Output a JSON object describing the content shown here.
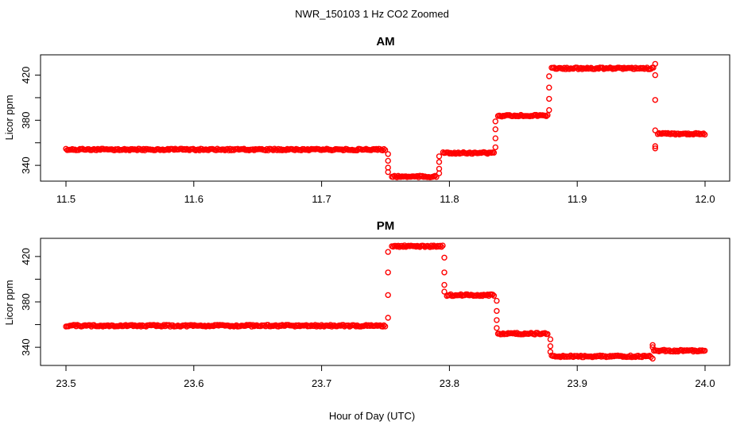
{
  "title": "NWR_150103  1 Hz CO2 Zoomed",
  "xlabel": "Hour of Day (UTC)",
  "chart_data": [
    {
      "type": "scatter",
      "title": "AM",
      "xlabel": "Hour of Day (UTC)",
      "ylabel": "Licor ppm",
      "xlim": [
        11.5,
        12.0
      ],
      "ylim": [
        326,
        438
      ],
      "xticks": [
        "11.5",
        "11.6",
        "11.7",
        "11.8",
        "11.9",
        "12.0"
      ],
      "xtick_values": [
        11.5,
        11.6,
        11.7,
        11.8,
        11.9,
        12.0
      ],
      "yticks": [
        "340",
        "380",
        "420"
      ],
      "ytick_values": [
        340,
        380,
        420
      ],
      "marker_color": "#ff0000",
      "marker": "open-circle",
      "segments": [
        {
          "x_start": 11.5,
          "x_end": 11.75,
          "y": 354
        },
        {
          "x_start": 11.755,
          "x_end": 11.79,
          "y": 330
        },
        {
          "x_start": 11.795,
          "x_end": 11.835,
          "y": 351
        },
        {
          "x_start": 11.838,
          "x_end": 11.877,
          "y": 384
        },
        {
          "x_start": 11.88,
          "x_end": 11.96,
          "y": 426
        },
        {
          "x_start": 11.963,
          "x_end": 12.0,
          "y": 368
        }
      ],
      "transitions": [
        {
          "x": 11.752,
          "y": [
            350,
            344,
            338,
            334
          ]
        },
        {
          "x": 11.792,
          "y": [
            333,
            337,
            343,
            348
          ]
        },
        {
          "x": 11.836,
          "y": [
            356,
            364,
            372,
            379
          ]
        },
        {
          "x": 11.878,
          "y": [
            389,
            399,
            409,
            419
          ]
        },
        {
          "x": 11.961,
          "y": [
            430,
            420,
            398,
            371,
            357,
            355
          ]
        }
      ]
    },
    {
      "type": "scatter",
      "title": "PM",
      "xlabel": "Hour of Day (UTC)",
      "ylabel": "Licor ppm",
      "xlim": [
        23.5,
        24.0
      ],
      "ylim": [
        324,
        436
      ],
      "xticks": [
        "23.5",
        "23.6",
        "23.7",
        "23.8",
        "23.9",
        "24.0"
      ],
      "xtick_values": [
        23.5,
        23.6,
        23.7,
        23.8,
        23.9,
        24.0
      ],
      "yticks": [
        "340",
        "380",
        "420"
      ],
      "ytick_values": [
        340,
        380,
        420
      ],
      "marker_color": "#ff0000",
      "marker": "open-circle",
      "segments": [
        {
          "x_start": 23.5,
          "x_end": 23.75,
          "y": 359
        },
        {
          "x_start": 23.755,
          "x_end": 23.795,
          "y": 429
        },
        {
          "x_start": 23.798,
          "x_end": 23.835,
          "y": 386
        },
        {
          "x_start": 23.838,
          "x_end": 23.877,
          "y": 352
        },
        {
          "x_start": 23.88,
          "x_end": 23.958,
          "y": 332
        },
        {
          "x_start": 23.96,
          "x_end": 24.0,
          "y": 337
        }
      ],
      "transitions": [
        {
          "x": 23.752,
          "y": [
            366,
            386,
            406,
            424
          ]
        },
        {
          "x": 23.796,
          "y": [
            419,
            406,
            395,
            389
          ]
        },
        {
          "x": 23.837,
          "y": [
            381,
            372,
            364,
            357
          ]
        },
        {
          "x": 23.879,
          "y": [
            347,
            341,
            336
          ]
        },
        {
          "x": 23.959,
          "y": [
            330,
            340,
            342
          ]
        }
      ]
    }
  ]
}
